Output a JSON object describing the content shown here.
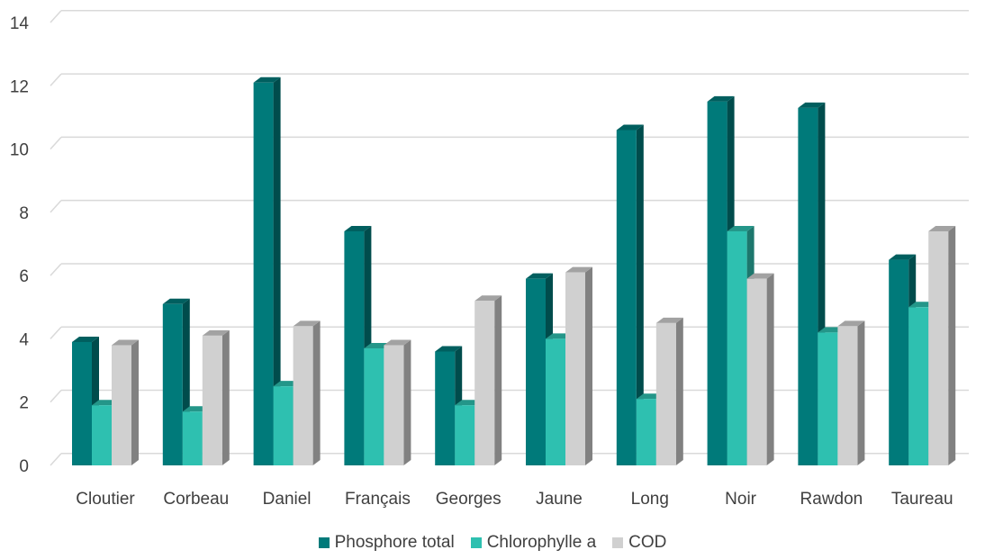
{
  "chart_data": {
    "type": "bar",
    "style": "3d-clustered-column",
    "categories": [
      "Cloutier",
      "Corbeau",
      "Daniel",
      "Français",
      "Georges",
      "Jaune",
      "Long",
      "Noir",
      "Rawdon",
      "Taureau"
    ],
    "series": [
      {
        "name": "Phosphore total",
        "color": "#007A7A",
        "values": [
          3.9,
          5.1,
          12.1,
          7.4,
          3.6,
          5.9,
          10.6,
          11.5,
          11.3,
          6.5
        ]
      },
      {
        "name": "Chlorophylle a",
        "color": "#2EC0B0",
        "values": [
          1.9,
          1.7,
          2.5,
          3.7,
          1.9,
          4.0,
          2.1,
          7.4,
          4.2,
          5.0
        ]
      },
      {
        "name": "COD",
        "color": "#D0D0D0",
        "values": [
          3.8,
          4.1,
          4.4,
          3.8,
          5.2,
          6.1,
          4.5,
          5.9,
          4.4,
          7.4
        ]
      }
    ],
    "ylim": [
      0,
      14
    ],
    "yticks": [
      "0",
      "2",
      "4",
      "6",
      "8",
      "10",
      "12",
      "14"
    ],
    "grid": true,
    "legend_position": "bottom"
  }
}
